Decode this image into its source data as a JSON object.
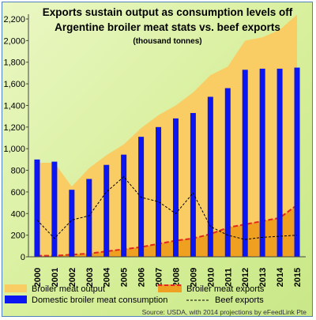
{
  "chart_data": {
    "type": "bar",
    "title": "Exports sustain output as consumption levels off",
    "subtitle": "Argentine broiler meat stats vs. beef exports",
    "unit_note": "(thousand tonnes)",
    "categories": [
      "2000",
      "2001",
      "2002",
      "2003",
      "2004",
      "2005",
      "2006",
      "2007",
      "2008",
      "2009",
      "2010",
      "2011",
      "2012",
      "2013",
      "2014",
      "2015"
    ],
    "ylim": [
      0,
      2200
    ],
    "yticks": [
      "0",
      "200",
      "400",
      "600",
      "800",
      "1,000",
      "1,200",
      "1,400",
      "1,600",
      "1,800",
      "2,000",
      "2,200"
    ],
    "ytick_values": [
      0,
      200,
      400,
      600,
      800,
      1000,
      1200,
      1400,
      1600,
      1800,
      2000,
      2200
    ],
    "grid": false,
    "legend_position": "bottom",
    "series": [
      {
        "name": "Broiler meat output",
        "type": "area",
        "color": "#f9cd63",
        "values": [
          870,
          870,
          650,
          820,
          940,
          1040,
          1190,
          1310,
          1400,
          1520,
          1680,
          1760,
          2000,
          2030,
          2100,
          2240
        ]
      },
      {
        "name": "Broiler meat exports",
        "type": "area",
        "color": "#f0a020",
        "line_color": "#e0281c",
        "line_style": "dashed",
        "values": [
          10,
          10,
          20,
          30,
          50,
          70,
          90,
          120,
          150,
          170,
          210,
          270,
          300,
          330,
          360,
          480
        ]
      },
      {
        "name": "Domestic broiler meat consumption",
        "type": "bar",
        "color": "#0c16f0",
        "values": [
          900,
          880,
          620,
          720,
          850,
          945,
          1110,
          1200,
          1280,
          1330,
          1480,
          1560,
          1730,
          1740,
          1740,
          1750
        ]
      },
      {
        "name": "Beef exports",
        "type": "line",
        "color": "#000000",
        "line_style": "dashed",
        "values": [
          340,
          170,
          340,
          380,
          600,
          740,
          550,
          510,
          400,
          590,
          280,
          200,
          160,
          180,
          190,
          200
        ]
      }
    ],
    "source": "Source: USDA, with 2014 projections by eFeedLink Pte"
  }
}
